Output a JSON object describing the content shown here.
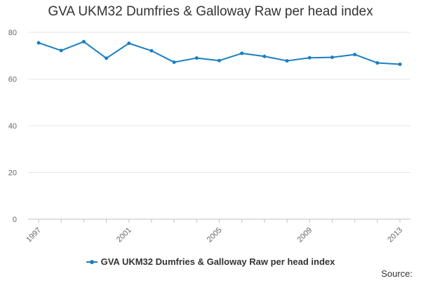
{
  "colors": {
    "series": "#1a7fc1",
    "grid": "#e6e6e6",
    "axis": "#c0c0c0"
  },
  "footer": {
    "source": "Source:"
  },
  "chart_data": {
    "type": "line",
    "title": "GVA UKM32 Dumfries & Galloway Raw per head index",
    "xlabel": "",
    "ylabel": "",
    "x": [
      1997,
      1998,
      1999,
      2000,
      2001,
      2002,
      2003,
      2004,
      2005,
      2006,
      2007,
      2008,
      2009,
      2010,
      2011,
      2012,
      2013
    ],
    "x_tick_labels": [
      "1997",
      "2001",
      "2005",
      "2009",
      "2013"
    ],
    "x_tick_values": [
      1997,
      2001,
      2005,
      2009,
      2013
    ],
    "y_ticks": [
      0,
      20,
      40,
      60,
      80
    ],
    "ylim": [
      0,
      80
    ],
    "grid": true,
    "legend_position": "bottom",
    "series": [
      {
        "name": "GVA UKM32 Dumfries & Galloway Raw per head index",
        "values": [
          75.5,
          72.2,
          76.0,
          68.9,
          75.3,
          72.1,
          67.2,
          69.0,
          67.9,
          71.0,
          69.7,
          67.8,
          69.1,
          69.3,
          70.5,
          66.9,
          66.3
        ]
      }
    ]
  }
}
